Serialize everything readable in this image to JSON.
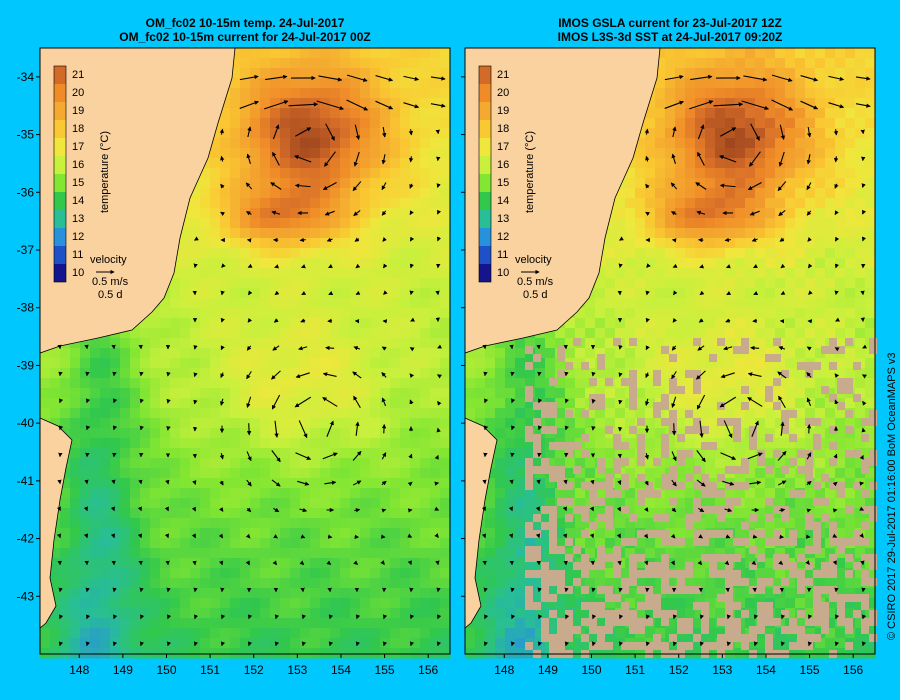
{
  "panels": [
    {
      "id": "left",
      "title_line1": "OM_fc02 10-15m temp. 24-Jul-2017",
      "title_line2": "OM_fc02 10-15m current for 24-Jul-2017 00Z",
      "missing_data": false
    },
    {
      "id": "right",
      "title_line1": "IMOS GSLA current for 23-Jul-2017 12Z",
      "title_line2": "IMOS L3S-3d SST at 24-Jul-2017 09:20Z",
      "missing_data": true
    }
  ],
  "colorbar": {
    "label": "temperature (°C)",
    "ticks": [
      "21",
      "20",
      "19",
      "18",
      "17",
      "16",
      "15",
      "14",
      "13",
      "12",
      "11",
      "10"
    ],
    "colors": [
      "#d26a28",
      "#f08c28",
      "#f4aa30",
      "#fac832",
      "#f0e63c",
      "#c8f03c",
      "#82e632",
      "#32c84b",
      "#28be96",
      "#2891dc",
      "#1e50c8",
      "#14148c"
    ]
  },
  "velocity_legend": {
    "title": "velocity",
    "speed": "0.5 m/s",
    "duration": "0.5 d"
  },
  "axes": {
    "lat_ticks": [
      "-34",
      "-35",
      "-36",
      "-37",
      "-38",
      "-39",
      "-40",
      "-41",
      "-42",
      "-43"
    ],
    "lon_ticks": [
      "148",
      "149",
      "150",
      "151",
      "152",
      "153",
      "154",
      "155",
      "156"
    ]
  },
  "credit": "© CSIRO 2017   29-Jul-2017 01:16:00 BoM OceanMAPS v3",
  "colors": {
    "background": "#00c8ff",
    "land": "#fad2a0",
    "missing": "#c8aa8c",
    "arrow": "#000000"
  }
}
